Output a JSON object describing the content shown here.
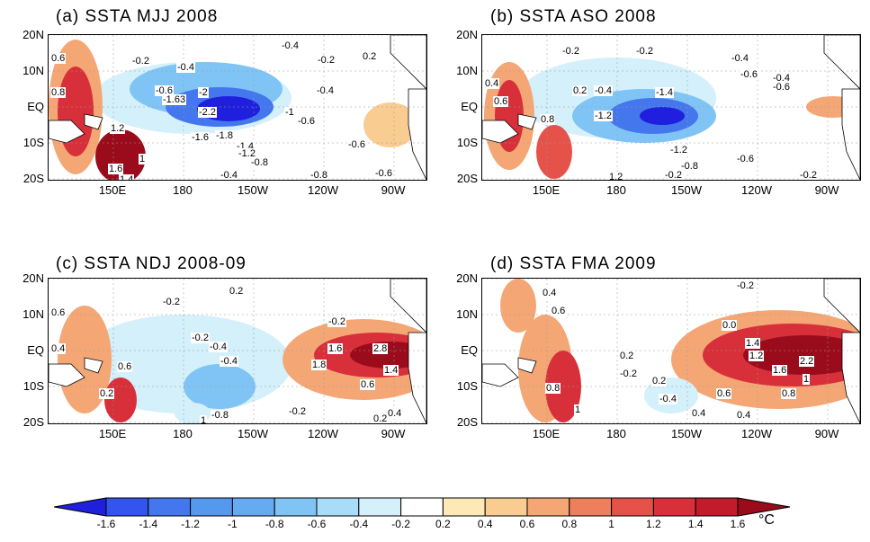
{
  "panels": [
    {
      "title": "(a) SSTA MJJ 2008",
      "lat_labels": [
        "20N",
        "10N",
        "EQ",
        "10S",
        "20S"
      ],
      "lon_labels": [
        "150E",
        "180",
        "150W",
        "120W",
        "90W"
      ],
      "contour_labels": [
        "0.6",
        "0.8",
        "1.2",
        "1",
        "1.6",
        "1.4",
        "-0.2",
        "-0.4",
        "-0.6",
        "-1.63",
        "-2",
        "-2.2",
        "-1.6",
        "-1.8",
        "-1.4",
        "-1.2",
        "-0.8",
        "-0.4",
        "-1",
        "-0.6",
        "-0.8",
        "-0.4",
        "-0.6",
        "0.2",
        "-0.6",
        "-0.2",
        "-0.4"
      ],
      "anomalies": [
        {
          "lon": 190,
          "lat": 0,
          "value": -2.2
        },
        {
          "lon": 140,
          "lat": -5,
          "value": 1.6
        }
      ]
    },
    {
      "title": "(b) SSTA ASO 2008",
      "lat_labels": [
        "20N",
        "10N",
        "EQ",
        "10S",
        "20S"
      ],
      "lon_labels": [
        "150E",
        "180",
        "150W",
        "120W",
        "90W"
      ],
      "contour_labels": [
        "0.4",
        "0.6",
        "0.8",
        "1.2",
        "-0.2",
        "-0.2",
        "-0.4",
        "-0.6",
        "-0.4",
        "-0.6",
        "0.2",
        "-0.4",
        "-1.4",
        "-1.2",
        "-1.2",
        "-0.8",
        "-0.6",
        "-0.2",
        "-0.2"
      ],
      "anomalies": [
        {
          "lon": 195,
          "lat": 0,
          "value": -1.4
        },
        {
          "lon": 140,
          "lat": -5,
          "value": 1.2
        }
      ]
    },
    {
      "title": "(c) SSTA NDJ 2008-09",
      "lat_labels": [
        "20N",
        "10N",
        "EQ",
        "10S",
        "20S"
      ],
      "lon_labels": [
        "150E",
        "180",
        "150W",
        "120W",
        "90W"
      ],
      "contour_labels": [
        "0.6",
        "0.4",
        "0.2",
        "0.6",
        "1",
        "-0.2",
        "0.2",
        "-0.2",
        "-0.4",
        "-0.2",
        "-0.4",
        "1.6",
        "2.8",
        "1.8",
        "1.4",
        "0.6",
        "-0.8",
        "-0.2",
        "0.2",
        "0.4"
      ],
      "anomalies": [
        {
          "lon": 265,
          "lat": 0,
          "value": 2.8
        },
        {
          "lon": 200,
          "lat": -8,
          "value": -0.8
        }
      ]
    },
    {
      "title": "(d) SSTA FMA 2009",
      "lat_labels": [
        "20N",
        "10N",
        "EQ",
        "10S",
        "20S"
      ],
      "lon_labels": [
        "150E",
        "180",
        "150W",
        "120W",
        "90W"
      ],
      "contour_labels": [
        "0.4",
        "0.6",
        "0.8",
        "1",
        "-0.2",
        "0.0",
        "1.4",
        "0.2",
        "0.2",
        "1.2",
        "2.2",
        "1.6",
        "1",
        "0.8",
        "0.6",
        "0.4",
        "0.4",
        "-0.4",
        "-0.2"
      ],
      "anomalies": [
        {
          "lon": 255,
          "lat": 0,
          "value": 2.2
        },
        {
          "lon": 140,
          "lat": -5,
          "value": 0.8
        }
      ]
    }
  ],
  "colorbar": {
    "ticks": [
      "-1.6",
      "-1.4",
      "-1.2",
      "-1",
      "-0.8",
      "-0.6",
      "-0.4",
      "-0.2",
      "0.2",
      "0.4",
      "0.6",
      "0.8",
      "1",
      "1.2",
      "1.4",
      "1.6"
    ],
    "unit": "°C",
    "colors": [
      "#1f1fdd",
      "#3355ee",
      "#4477ee",
      "#5599ee",
      "#66aaf2",
      "#7fc4f5",
      "#a8dcf8",
      "#d4f0fb",
      "#ffffff",
      "#fde9b6",
      "#f9cc92",
      "#f4a775",
      "#ee7f5d",
      "#e5524a",
      "#d8303a",
      "#c01c2c",
      "#9a0c1c"
    ]
  }
}
